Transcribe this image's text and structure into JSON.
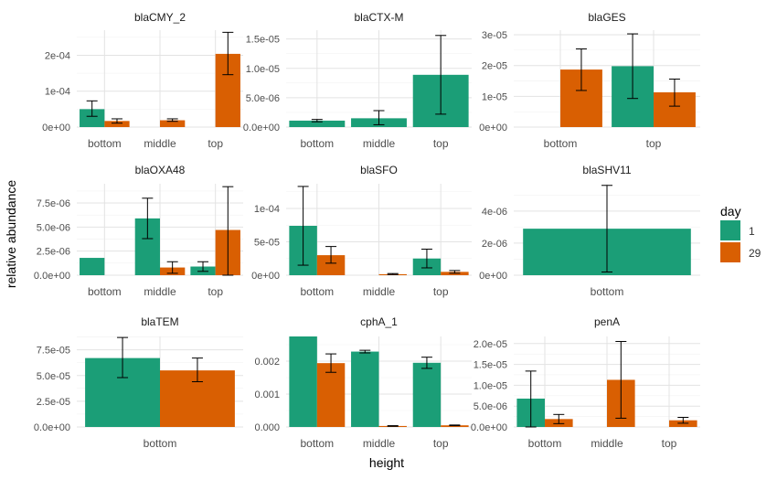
{
  "ylabel": "relative abundance",
  "xlabel": "height",
  "legend": {
    "title": "day",
    "items": [
      {
        "label": "1",
        "color": "#1b9e77"
      },
      {
        "label": "29",
        "color": "#d95f02"
      }
    ]
  },
  "chart_data": [
    {
      "type": "bar",
      "title": "blaCMY_2",
      "categories": [
        "bottom",
        "middle",
        "top"
      ],
      "ylim": [
        0,
        0.00027
      ],
      "ticks": [
        0,
        0.0001,
        0.0002
      ],
      "tick_labels": [
        "0e+00",
        "1e-04",
        "2e-04"
      ],
      "series": [
        {
          "name": "1",
          "values": [
            5e-05,
            null,
            null
          ],
          "err_low": [
            3e-05,
            null,
            null
          ],
          "err_high": [
            7.3e-05,
            null,
            null
          ]
        },
        {
          "name": "29",
          "values": [
            1.7e-05,
            1.9e-05,
            0.000204
          ],
          "err_low": [
            1.1e-05,
            1.6e-05,
            0.000146
          ],
          "err_high": [
            2.3e-05,
            2.3e-05,
            0.000264
          ]
        }
      ]
    },
    {
      "type": "bar",
      "title": "blaCTX-M",
      "categories": [
        "bottom",
        "middle",
        "top"
      ],
      "ylim": [
        0,
        1.65e-05
      ],
      "ticks": [
        0,
        5e-06,
        1e-05,
        1.5e-05
      ],
      "tick_labels": [
        "0.0e+00",
        "5.0e-06",
        "1.0e-05",
        "1.5e-05"
      ],
      "series": [
        {
          "name": "1",
          "values": [
            1.1e-06,
            1.5e-06,
            8.9e-06
          ],
          "err_low": [
            9e-07,
            4e-07,
            2.2e-06
          ],
          "err_high": [
            1.3e-06,
            2.8e-06,
            1.56e-05
          ]
        }
      ]
    },
    {
      "type": "bar",
      "title": "blaGES",
      "categories": [
        "bottom",
        "top"
      ],
      "ylim": [
        0,
        3.15e-05
      ],
      "ticks": [
        0,
        1e-05,
        2e-05,
        3e-05
      ],
      "tick_labels": [
        "0e+00",
        "1e-05",
        "2e-05",
        "3e-05"
      ],
      "series": [
        {
          "name": "1",
          "values": [
            null,
            1.98e-05
          ],
          "err_low": [
            null,
            9.3e-06
          ],
          "err_high": [
            null,
            3.03e-05
          ]
        },
        {
          "name": "29",
          "values": [
            1.87e-05,
            1.13e-05
          ],
          "err_low": [
            1.19e-05,
            6.8e-06
          ],
          "err_high": [
            2.54e-05,
            1.56e-05
          ]
        }
      ]
    },
    {
      "type": "bar",
      "title": "blaOXA48",
      "categories": [
        "bottom",
        "middle",
        "top"
      ],
      "ylim": [
        0,
        9.5e-06
      ],
      "ticks": [
        0,
        2.5e-06,
        5e-06,
        7.5e-06
      ],
      "tick_labels": [
        "0.0e+00",
        "2.5e-06",
        "5.0e-06",
        "7.5e-06"
      ],
      "series": [
        {
          "name": "1",
          "values": [
            1.8e-06,
            5.9e-06,
            9e-07
          ],
          "err_low": [
            null,
            3.8e-06,
            4e-07
          ],
          "err_high": [
            null,
            8e-06,
            1.4e-06
          ]
        },
        {
          "name": "29",
          "values": [
            null,
            8e-07,
            4.7e-06
          ],
          "err_low": [
            null,
            2e-07,
            0.0
          ],
          "err_high": [
            null,
            1.4e-06,
            9.2e-06
          ]
        }
      ]
    },
    {
      "type": "bar",
      "title": "blaSFO",
      "categories": [
        "bottom",
        "middle",
        "top"
      ],
      "ylim": [
        0,
        0.000137
      ],
      "ticks": [
        0,
        5e-05,
        0.0001
      ],
      "tick_labels": [
        "0e+00",
        "5e-05",
        "1e-04"
      ],
      "series": [
        {
          "name": "1",
          "values": [
            7.4e-05,
            null,
            2.5e-05
          ],
          "err_low": [
            1.5e-05,
            null,
            1.1e-05
          ],
          "err_high": [
            0.000133,
            null,
            3.9e-05
          ]
        },
        {
          "name": "29",
          "values": [
            3e-05,
            1.5e-06,
            5e-06
          ],
          "err_low": [
            1.8e-05,
            1e-06,
            3e-06
          ],
          "err_high": [
            4.3e-05,
            2.5e-06,
            7e-06
          ]
        }
      ]
    },
    {
      "type": "bar",
      "title": "blaSHV11",
      "categories": [
        "bottom"
      ],
      "ylim": [
        0,
        5.7e-06
      ],
      "ticks": [
        0,
        2e-06,
        4e-06
      ],
      "tick_labels": [
        "0e+00",
        "2e-06",
        "4e-06"
      ],
      "series": [
        {
          "name": "1",
          "values": [
            2.9e-06
          ],
          "err_low": [
            2e-07
          ],
          "err_high": [
            5.6e-06
          ]
        }
      ]
    },
    {
      "type": "bar",
      "title": "blaTEM",
      "categories": [
        "bottom"
      ],
      "ylim": [
        0,
        8.8e-05
      ],
      "ticks": [
        0,
        2.5e-05,
        5e-05,
        7.5e-05
      ],
      "tick_labels": [
        "0.0e+00",
        "2.5e-05",
        "5.0e-05",
        "7.5e-05"
      ],
      "series": [
        {
          "name": "1",
          "values": [
            6.7e-05
          ],
          "err_low": [
            4.8e-05
          ],
          "err_high": [
            8.7e-05
          ]
        },
        {
          "name": "29",
          "values": [
            5.5e-05
          ],
          "err_low": [
            4.4e-05
          ],
          "err_high": [
            6.7e-05
          ]
        }
      ]
    },
    {
      "type": "bar",
      "title": "cphA_1",
      "categories": [
        "bottom",
        "middle",
        "top"
      ],
      "ylim": [
        0,
        0.00275
      ],
      "ticks": [
        0,
        0.001,
        0.002
      ],
      "tick_labels": [
        "0.000",
        "0.001",
        "0.002"
      ],
      "series": [
        {
          "name": "1",
          "values": [
            0.00275,
            0.00229,
            0.00195
          ],
          "err_low": [
            null,
            0.00225,
            0.00178
          ],
          "err_high": [
            null,
            0.00233,
            0.00212
          ]
        },
        {
          "name": "29",
          "values": [
            0.00194,
            3e-05,
            5e-05
          ],
          "err_low": [
            0.00166,
            2e-05,
            4e-05
          ],
          "err_high": [
            0.00222,
            4e-05,
            6e-05
          ]
        }
      ]
    },
    {
      "type": "bar",
      "title": "penA",
      "categories": [
        "bottom",
        "middle",
        "top"
      ],
      "ylim": [
        0,
        2.17e-05
      ],
      "ticks": [
        0,
        5e-06,
        1e-05,
        1.5e-05,
        2e-05
      ],
      "tick_labels": [
        "0.0e+00",
        "5.0e-06",
        "1.0e-05",
        "1.5e-05",
        "2.0e-05"
      ],
      "series": [
        {
          "name": "1",
          "values": [
            6.8e-06,
            null,
            null
          ],
          "err_low": [
            0.0,
            null,
            null
          ],
          "err_high": [
            1.34e-05,
            null,
            null
          ]
        },
        {
          "name": "29",
          "values": [
            1.9e-06,
            1.13e-05,
            1.6e-06
          ],
          "err_low": [
            8e-07,
            2.1e-06,
            9e-07
          ],
          "err_high": [
            3e-06,
            2.05e-05,
            2.3e-06
          ]
        }
      ]
    }
  ]
}
